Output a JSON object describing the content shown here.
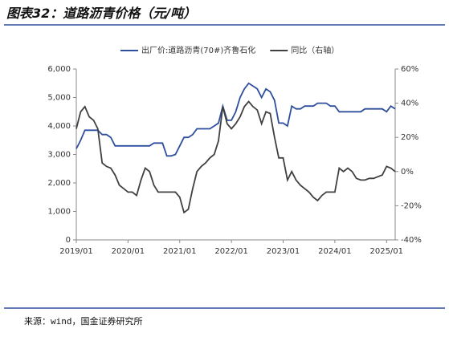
{
  "chart_data": {
    "type": "line",
    "title": "图表32：道路沥青价格（元/吨）",
    "source": "来源：wind，国金证券研究所",
    "x": [
      "2019/01",
      "2019/02",
      "2019/03",
      "2019/04",
      "2019/05",
      "2019/06",
      "2019/07",
      "2019/08",
      "2019/09",
      "2019/10",
      "2019/11",
      "2019/12",
      "2020/01",
      "2020/02",
      "2020/03",
      "2020/04",
      "2020/05",
      "2020/06",
      "2020/07",
      "2020/08",
      "2020/09",
      "2020/10",
      "2020/11",
      "2020/12",
      "2021/01",
      "2021/02",
      "2021/03",
      "2021/04",
      "2021/05",
      "2021/06",
      "2021/07",
      "2021/08",
      "2021/09",
      "2021/10",
      "2021/11",
      "2021/12",
      "2022/01",
      "2022/02",
      "2022/03",
      "2022/04",
      "2022/05",
      "2022/06",
      "2022/07",
      "2022/08",
      "2022/09",
      "2022/10",
      "2022/11",
      "2022/12",
      "2023/01",
      "2023/02",
      "2023/03",
      "2023/04",
      "2023/05",
      "2023/06",
      "2023/07",
      "2023/08",
      "2023/09",
      "2023/10",
      "2023/11",
      "2023/12",
      "2024/01",
      "2024/02",
      "2024/03",
      "2024/04",
      "2024/05",
      "2024/06",
      "2024/07",
      "2024/08",
      "2024/09",
      "2024/10",
      "2024/11",
      "2024/12",
      "2025/01",
      "2025/02",
      "2025/03"
    ],
    "series": [
      {
        "name": "出厂价:道路沥青(70#)齐鲁石化",
        "color": "#2e4f9e",
        "values": [
          3200,
          3500,
          3850,
          3850,
          3850,
          3850,
          3700,
          3700,
          3600,
          3300,
          3300,
          3300,
          3300,
          3300,
          3300,
          3300,
          3300,
          3300,
          3400,
          3400,
          3400,
          2950,
          2950,
          3000,
          3300,
          3600,
          3600,
          3700,
          3900,
          3900,
          3900,
          3900,
          4000,
          4100,
          4700,
          4200,
          4200,
          4500,
          5000,
          5300,
          5500,
          5400,
          5300,
          5000,
          5300,
          5200,
          4900,
          4100,
          4100,
          4000,
          4700,
          4600,
          4600,
          4700,
          4700,
          4700,
          4800,
          4800,
          4800,
          4700,
          4700,
          4500,
          4500,
          4500,
          4500,
          4500,
          4500,
          4600,
          4600,
          4600,
          4600,
          4600,
          4500,
          4700,
          4600
        ]
      },
      {
        "name": "同比（右轴）",
        "color": "#404040",
        "axis": "y2",
        "values": [
          25,
          35,
          38,
          32,
          30,
          25,
          5,
          3,
          2,
          -2,
          -8,
          -10,
          -12,
          -12,
          -14,
          -5,
          2,
          0,
          -8,
          -12,
          -12,
          -12,
          -12,
          -12,
          -15,
          -24,
          -22,
          -10,
          0,
          3,
          5,
          8,
          10,
          18,
          38,
          28,
          25,
          28,
          32,
          38,
          41,
          38,
          36,
          28,
          35,
          34,
          20,
          8,
          8,
          -5,
          0,
          -5,
          -8,
          -10,
          -12,
          -15,
          -17,
          -14,
          -12,
          -12,
          -12,
          2,
          0,
          2,
          0,
          -4,
          -5,
          -5,
          -4,
          -4,
          -3,
          -2,
          3,
          2,
          0
        ]
      }
    ],
    "xlim": [
      "2019/01",
      "2025/03"
    ],
    "xticks": [
      "2019/01",
      "2020/01",
      "2021/01",
      "2022/01",
      "2023/01",
      "2024/01",
      "2025/01"
    ],
    "ylim": [
      0,
      6000
    ],
    "yticks": [
      0,
      {
        "value": 1000,
        "label": "1,000"
      },
      {
        "value": 2000,
        "label": "2,000"
      },
      {
        "value": 3000,
        "label": "3,000"
      },
      {
        "value": 4000,
        "label": "4,000"
      },
      {
        "value": 5000,
        "label": "5,000"
      },
      {
        "value": 6000,
        "label": "6,000"
      }
    ],
    "y2lim": [
      -40,
      60
    ],
    "y2ticks": [
      {
        "value": -40,
        "label": "-40%"
      },
      {
        "value": -20,
        "label": "-20%"
      },
      {
        "value": 0,
        "label": "0%"
      },
      {
        "value": 20,
        "label": "20%"
      },
      {
        "value": 40,
        "label": "40%"
      },
      {
        "value": 60,
        "label": "60%"
      }
    ],
    "legend": "top"
  }
}
